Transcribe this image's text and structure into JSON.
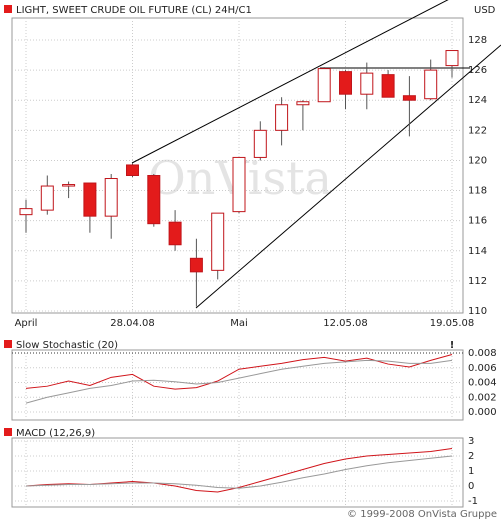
{
  "chart_data": [
    {
      "type": "candlestick",
      "title": "LIGHT, SWEET CRUDE OIL FUTURE (CL) 24H/C1",
      "unit": "USD",
      "watermark": "OnVista",
      "categories": [
        "April",
        null,
        null,
        null,
        null,
        "28.04.08",
        null,
        null,
        null,
        null,
        "Mai",
        null,
        null,
        null,
        null,
        "12.05.08",
        null,
        null,
        null,
        null,
        "19.05.08"
      ],
      "open": [
        116.4,
        116.7,
        118.3,
        118.5,
        116.3,
        119.7,
        119.0,
        115.9,
        113.5,
        112.7,
        116.6,
        120.2,
        122.0,
        123.7,
        123.9,
        125.9,
        124.4,
        125.7,
        124.3,
        124.1,
        126.3
      ],
      "high": [
        117.4,
        119.0,
        118.6,
        118.5,
        119.1,
        119.8,
        119.1,
        116.7,
        114.8,
        116.5,
        120.2,
        122.6,
        124.2,
        124.0,
        126.2,
        126.0,
        126.5,
        126.0,
        125.6,
        126.7,
        127.3
      ],
      "low": [
        115.2,
        116.4,
        117.5,
        115.2,
        114.8,
        118.9,
        115.6,
        114.0,
        110.3,
        112.1,
        116.5,
        120.0,
        121.0,
        122.0,
        123.9,
        123.4,
        123.4,
        124.2,
        121.6,
        124.0,
        125.5
      ],
      "close": [
        116.8,
        118.3,
        118.4,
        116.3,
        118.8,
        119.0,
        115.8,
        114.4,
        112.6,
        116.5,
        120.2,
        122.0,
        123.7,
        123.9,
        126.1,
        124.4,
        125.8,
        124.2,
        124.0,
        126.0,
        127.3
      ],
      "up_color": "#ffffff",
      "down_color": "#e31b1b",
      "edge_color": "#c0141a",
      "ylim": [
        110,
        128
      ],
      "yticks": [
        110,
        112,
        114,
        116,
        118,
        120,
        122,
        124,
        126,
        128
      ],
      "grid": true
    },
    {
      "type": "line",
      "title": "Slow Stochastic (20)",
      "marker": "!",
      "series": [
        {
          "color": "#d0141a",
          "values": [
            0.0032,
            0.0035,
            0.0042,
            0.0036,
            0.0047,
            0.0051,
            0.0035,
            0.0031,
            0.0033,
            0.0042,
            0.0058,
            0.0062,
            0.0066,
            0.0071,
            0.0074,
            0.0069,
            0.0073,
            0.0065,
            0.0061,
            0.007,
            0.0078
          ]
        },
        {
          "color": "#999999",
          "values": [
            0.0012,
            0.002,
            0.0026,
            0.0032,
            0.0036,
            0.0042,
            0.0043,
            0.0041,
            0.0038,
            0.004,
            0.0046,
            0.0052,
            0.0058,
            0.0062,
            0.0066,
            0.0068,
            0.007,
            0.0069,
            0.0066,
            0.0066,
            0.007
          ]
        }
      ],
      "ylim": [
        0,
        0.008
      ],
      "yticks": [
        {
          "value": 0,
          "label": "0.000"
        },
        0.002,
        0.004,
        0.006,
        0.008
      ],
      "grid": true
    },
    {
      "type": "line",
      "title": "MACD (12,26,9)",
      "series": [
        {
          "color": "#d0141a",
          "values": [
            0,
            0.1,
            0.15,
            0.1,
            0.2,
            0.3,
            0.2,
            0,
            -0.3,
            -0.4,
            -0.1,
            0.3,
            0.7,
            1.1,
            1.5,
            1.8,
            2.0,
            2.1,
            2.2,
            2.3,
            2.5
          ]
        },
        {
          "color": "#999999",
          "values": [
            0,
            0.05,
            0.1,
            0.1,
            0.15,
            0.2,
            0.2,
            0.15,
            0.05,
            -0.1,
            -0.15,
            0,
            0.25,
            0.55,
            0.8,
            1.1,
            1.35,
            1.55,
            1.7,
            1.85,
            2.0
          ]
        }
      ],
      "ylim": [
        -1,
        3
      ],
      "yticks": [
        -1,
        0,
        1,
        2,
        3
      ],
      "grid": true
    }
  ],
  "footer": "© 1999-2008 OnVista Gruppe"
}
